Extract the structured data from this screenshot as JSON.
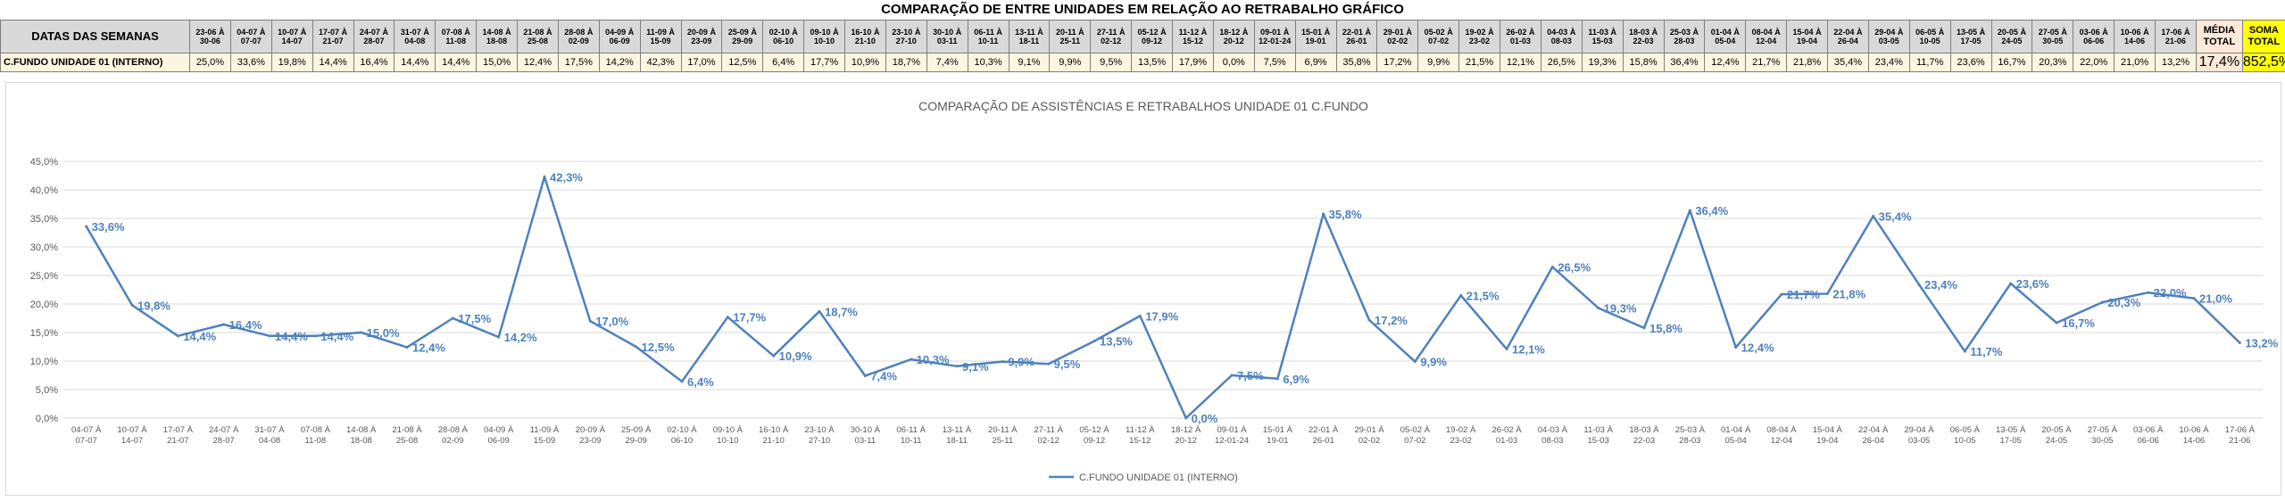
{
  "sheet": {
    "title": "COMPARAÇÃO DE ENTRE UNIDADES EM RELAÇÃO AO RETRABALHO GRÁFICO",
    "header_label": "DATAS DAS SEMANAS",
    "row_label": "C.FUNDO UNIDADE 01 (INTERNO)",
    "avg_header": "MÉDIA TOTAL",
    "sum_header": "SOMA TOTAL",
    "avg_value": "17,4%",
    "sum_value": "852,5%",
    "weeks": [
      "23-06 À 30-06",
      "04-07 À 07-07",
      "10-07 À 14-07",
      "17-07 À 21-07",
      "24-07 À 28-07",
      "31-07 À 04-08",
      "07-08 À 11-08",
      "14-08 À 18-08",
      "21-08 À 25-08",
      "28-08 À 02-09",
      "04-09 À 06-09",
      "11-09 À 15-09",
      "20-09 À 23-09",
      "25-09 À 29-09",
      "02-10 À 06-10",
      "09-10 À 10-10",
      "16-10 À 21-10",
      "23-10 À 27-10",
      "30-10 À 03-11",
      "06-11 À 10-11",
      "13-11 À 18-11",
      "20-11 À 25-11",
      "27-11 À 02-12",
      "05-12 À 09-12",
      "11-12 À 15-12",
      "18-12 À 20-12",
      "09-01 À 12-01-24",
      "15-01 À 19-01",
      "22-01 À 26-01",
      "29-01 À 02-02",
      "05-02 À 07-02",
      "19-02 À 23-02",
      "26-02 À 01-03",
      "04-03 À 08-03",
      "11-03 À 15-03",
      "18-03 À 22-03",
      "25-03 À 28-03",
      "01-04 À 05-04",
      "08-04 À 12-04",
      "15-04 À 19-04",
      "22-04 À 26-04",
      "29-04 À 03-05",
      "06-05 À 10-05",
      "13-05 À 17-05",
      "20-05 À 24-05",
      "27-05 À 30-05",
      "03-06 À 06-06",
      "10-06 À 14-06",
      "17-06 À 21-06"
    ],
    "values": [
      "25,0%",
      "33,6%",
      "19,8%",
      "14,4%",
      "16,4%",
      "14,4%",
      "14,4%",
      "15,0%",
      "12,4%",
      "17,5%",
      "14,2%",
      "42,3%",
      "17,0%",
      "12,5%",
      "6,4%",
      "17,7%",
      "10,9%",
      "18,7%",
      "7,4%",
      "10,3%",
      "9,1%",
      "9,9%",
      "9,5%",
      "13,5%",
      "17,9%",
      "0,0%",
      "7,5%",
      "6,9%",
      "35,8%",
      "17,2%",
      "9,9%",
      "21,5%",
      "12,1%",
      "26,5%",
      "19,3%",
      "15,8%",
      "36,4%",
      "12,4%",
      "21,7%",
      "21,8%",
      "35,4%",
      "23,4%",
      "11,7%",
      "23,6%",
      "16,7%",
      "20,3%",
      "22,0%",
      "21,0%",
      "13,2%"
    ]
  },
  "chart_data": {
    "type": "line",
    "title": "COMPARAÇÃO DE ASSISTÊNCIAS E RETRABALHOS UNIDADE 01 C.FUNDO",
    "xlabel": "",
    "ylabel": "",
    "ylim": [
      0,
      45
    ],
    "ytick_step": 5,
    "yticks": [
      "0,0%",
      "5,0%",
      "10,0%",
      "15,0%",
      "20,0%",
      "25,0%",
      "30,0%",
      "35,0%",
      "40,0%",
      "45,0%"
    ],
    "grid": true,
    "legend_position": "bottom",
    "categories": [
      "04-07 À 07-07",
      "10-07 À 14-07",
      "17-07 À 21-07",
      "24-07 À 28-07",
      "31-07 À 04-08",
      "07-08 À 11-08",
      "14-08 À 18-08",
      "21-08 À 25-08",
      "28-08 À 02-09",
      "04-09 À 06-09",
      "11-09 À 15-09",
      "20-09 À 23-09",
      "25-09 À 29-09",
      "02-10 À 06-10",
      "09-10 À 10-10",
      "16-10 À 21-10",
      "23-10 À 27-10",
      "30-10 À 03-11",
      "06-11 À 10-11",
      "13-11 À 18-11",
      "20-11 À 25-11",
      "27-11 À 02-12",
      "05-12 À 09-12",
      "11-12 À 15-12",
      "18-12 À 20-12",
      "09-01 À 12-01-24",
      "15-01 À 19-01",
      "22-01 À 26-01",
      "29-01 À 02-02",
      "05-02 À 07-02",
      "19-02 À 23-02",
      "26-02 À 01-03",
      "04-03 À 08-03",
      "11-03 À 15-03",
      "18-03 À 22-03",
      "25-03 À 28-03",
      "01-04 À 05-04",
      "08-04 À 12-04",
      "15-04 À 19-04",
      "22-04 À 26-04",
      "29-04 À 03-05",
      "06-05 À 10-05",
      "13-05 À 17-05",
      "20-05 À 24-05",
      "27-05 À 30-05",
      "03-06 À 06-06",
      "10-06 À 14-06",
      "17-06 À 21-06"
    ],
    "series": [
      {
        "name": "C.FUNDO UNIDADE 01 (INTERNO)",
        "color": "#4f81bd",
        "values": [
          33.6,
          19.8,
          14.4,
          16.4,
          14.4,
          14.4,
          15.0,
          12.4,
          17.5,
          14.2,
          42.3,
          17.0,
          12.5,
          6.4,
          17.7,
          10.9,
          18.7,
          7.4,
          10.3,
          9.1,
          9.9,
          9.5,
          13.5,
          17.9,
          0.0,
          7.5,
          6.9,
          35.8,
          17.2,
          9.9,
          21.5,
          12.1,
          26.5,
          19.3,
          15.8,
          36.4,
          12.4,
          21.7,
          21.8,
          35.4,
          23.4,
          11.7,
          23.6,
          16.7,
          20.3,
          22.0,
          21.0,
          13.2
        ],
        "data_labels": [
          "33,6%",
          "19,8%",
          "14,4%",
          "16,4%",
          "14,4%",
          "14,4%",
          "15,0%",
          "12,4%",
          "17,5%",
          "14,2%",
          "42,3%",
          "17,0%",
          "12,5%",
          "6,4%",
          "17,7%",
          "10,9%",
          "18,7%",
          "7,4%",
          "10,3%",
          "9,1%",
          "9,9%",
          "9,5%",
          "13,5%",
          "17,9%",
          "0,0%",
          "7,5%",
          "6,9%",
          "35,8%",
          "17,2%",
          "9,9%",
          "21,5%",
          "12,1%",
          "26,5%",
          "19,3%",
          "15,8%",
          "36,4%",
          "12,4%",
          "21,7%",
          "21,8%",
          "35,4%",
          "23,4%",
          "11,7%",
          "23,6%",
          "16,7%",
          "20,3%",
          "22,0%",
          "21,0%",
          "13,2%"
        ]
      }
    ]
  }
}
